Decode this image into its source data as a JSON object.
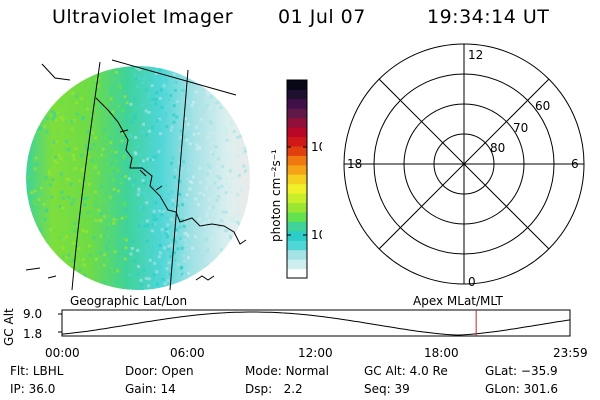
{
  "header": {
    "title": "Ultraviolet Imager",
    "date": "01 Jul 07",
    "time": "19:34:14 UT"
  },
  "colorbar": {
    "unit_label": "photon cm⁻²s⁻¹",
    "ticks": [
      {
        "label": "100",
        "value": 100
      },
      {
        "label": "10",
        "value": 10
      }
    ],
    "colors": [
      "#ffffff",
      "#cdeeee",
      "#a5e2e6",
      "#4fd6d6",
      "#2ccdc8",
      "#3fd39a",
      "#63e14f",
      "#9be631",
      "#c8ee2a",
      "#f0f02a",
      "#f5d020",
      "#f5a418",
      "#f07810",
      "#e04010",
      "#d01818",
      "#b80828",
      "#90103a",
      "#601848",
      "#401048",
      "#201030",
      "#080818"
    ]
  },
  "left_panel": {
    "label": "Geographic Lat/Lon"
  },
  "right_panel": {
    "label": "Apex MLat/MLT",
    "mlt_labels": [
      "12",
      "18",
      "6",
      "0"
    ],
    "mlat_labels": [
      "60",
      "70",
      "80"
    ]
  },
  "altitude_plot": {
    "ylabel": "GC Alt",
    "yticks": [
      "9.0",
      "1.8"
    ],
    "xticks": [
      "00:00",
      "06:00",
      "12:00",
      "18:00",
      "23:59"
    ],
    "marker_time": "19:34",
    "marker_color": "#cc2222"
  },
  "info": {
    "filter": {
      "label": "Flt:",
      "value": "LBHL"
    },
    "door": {
      "label": "Door:",
      "value": "Open"
    },
    "mode": {
      "label": "Mode:",
      "value": "Normal"
    },
    "gc_alt": {
      "label": "GC Alt:",
      "value": "4.0 Re"
    },
    "glat": {
      "label": "GLat:",
      "value": "−35.9"
    },
    "ip": {
      "label": "IP:",
      "value": "36.0"
    },
    "gain": {
      "label": "Gain:",
      "value": "14"
    },
    "dsp": {
      "label": "Dsp:",
      "value": "2.2"
    },
    "seq": {
      "label": "Seq:",
      "value": "39"
    },
    "glon": {
      "label": "GLon:",
      "value": "301.6"
    }
  }
}
